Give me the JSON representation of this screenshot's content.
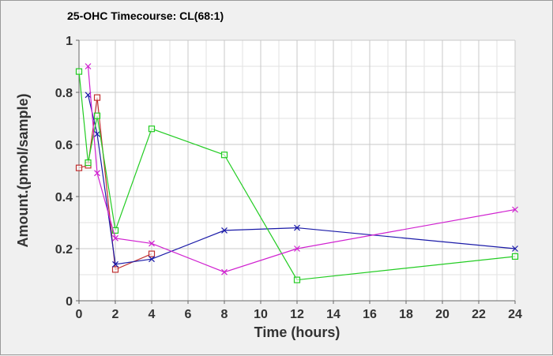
{
  "chart_data": {
    "type": "line",
    "title": "25-OHC Timecourse: CL(68:1)",
    "xlabel": "Time (hours)",
    "ylabel": "Amount.(pmol/sample)",
    "xlim": [
      0,
      24
    ],
    "ylim": [
      0,
      1
    ],
    "x_ticks": [
      0,
      2,
      4,
      6,
      8,
      10,
      12,
      14,
      16,
      18,
      20,
      22,
      24
    ],
    "y_ticks": [
      0,
      0.2,
      0.4,
      0.6,
      0.8,
      1
    ],
    "y_tick_labels": [
      "0",
      "0.2",
      "0.4",
      "0.6",
      "0.8",
      "1"
    ],
    "grid": true,
    "series": [
      {
        "color": "#c03030",
        "marker": "square",
        "x": [
          0,
          0.5,
          1,
          2,
          4
        ],
        "y": [
          0.51,
          0.52,
          0.78,
          0.12,
          0.18
        ]
      },
      {
        "color": "#1a1aa8",
        "marker": "x",
        "x": [
          0.5,
          1,
          2,
          4,
          8,
          12,
          24
        ],
        "y": [
          0.79,
          0.64,
          0.14,
          0.16,
          0.27,
          0.28,
          0.2
        ]
      },
      {
        "color": "#22cc22",
        "marker": "square",
        "x": [
          0,
          0.5,
          1,
          2,
          4,
          8,
          12,
          24
        ],
        "y": [
          0.88,
          0.53,
          0.71,
          0.27,
          0.66,
          0.56,
          0.08,
          0.17
        ]
      },
      {
        "color": "#d020d0",
        "marker": "x",
        "x": [
          0.5,
          1,
          2,
          4,
          8,
          12,
          24
        ],
        "y": [
          0.9,
          0.49,
          0.24,
          0.22,
          0.11,
          0.2,
          0.35
        ]
      }
    ]
  }
}
